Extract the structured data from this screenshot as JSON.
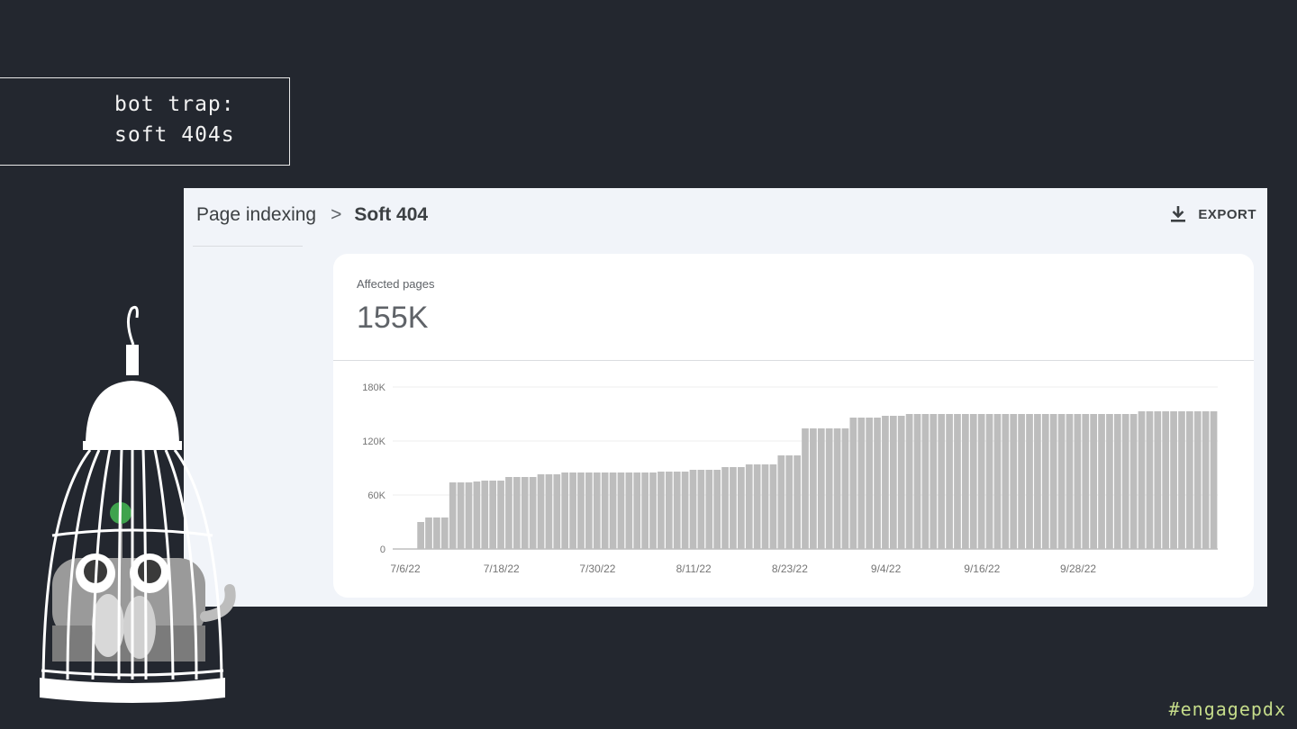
{
  "slide": {
    "title_line1": "Bot trap:",
    "title_line2": "Soft 404s",
    "hashtag": "#engagepdx"
  },
  "console": {
    "breadcrumb_parent": "Page indexing",
    "breadcrumb_separator": ">",
    "breadcrumb_current": "Soft 404",
    "export_label": "EXPORT",
    "export_icon": "download-icon",
    "metric_label": "Affected pages",
    "metric_value": "155K"
  },
  "illustration": {
    "description": "birdcage-robot-illustration"
  },
  "chart_data": {
    "type": "bar",
    "ylim": [
      0,
      180000
    ],
    "yticks": [
      0,
      60000,
      120000,
      180000
    ],
    "ytick_labels": [
      "0",
      "60K",
      "120K",
      "180K"
    ],
    "x_tick_labels": [
      "7/6/22",
      "7/18/22",
      "7/30/22",
      "8/11/22",
      "8/23/22",
      "9/4/22",
      "9/16/22",
      "9/28/22"
    ],
    "x_tick_positions": [
      0,
      12,
      24,
      36,
      48,
      60,
      72,
      84
    ],
    "bar_color": "#bdbdbd",
    "values": [
      0,
      0,
      0,
      30000,
      35000,
      35000,
      35000,
      74000,
      74000,
      74000,
      75000,
      76000,
      76000,
      76000,
      80000,
      80000,
      80000,
      80000,
      83000,
      83000,
      83000,
      85000,
      85000,
      85000,
      85000,
      85000,
      85000,
      85000,
      85000,
      85000,
      85000,
      85000,
      85000,
      86000,
      86000,
      86000,
      86000,
      88000,
      88000,
      88000,
      88000,
      91000,
      91000,
      91000,
      94000,
      94000,
      94000,
      94000,
      104000,
      104000,
      104000,
      134000,
      134000,
      134000,
      134000,
      134000,
      134000,
      146000,
      146000,
      146000,
      146000,
      148000,
      148000,
      148000,
      150000,
      150000,
      150000,
      150000,
      150000,
      150000,
      150000,
      150000,
      150000,
      150000,
      150000,
      150000,
      150000,
      150000,
      150000,
      150000,
      150000,
      150000,
      150000,
      150000,
      150000,
      150000,
      150000,
      150000,
      150000,
      150000,
      150000,
      150000,
      150000,
      153000,
      153000,
      153000,
      153000,
      153000,
      153000,
      153000,
      153000,
      153000,
      153000
    ]
  }
}
